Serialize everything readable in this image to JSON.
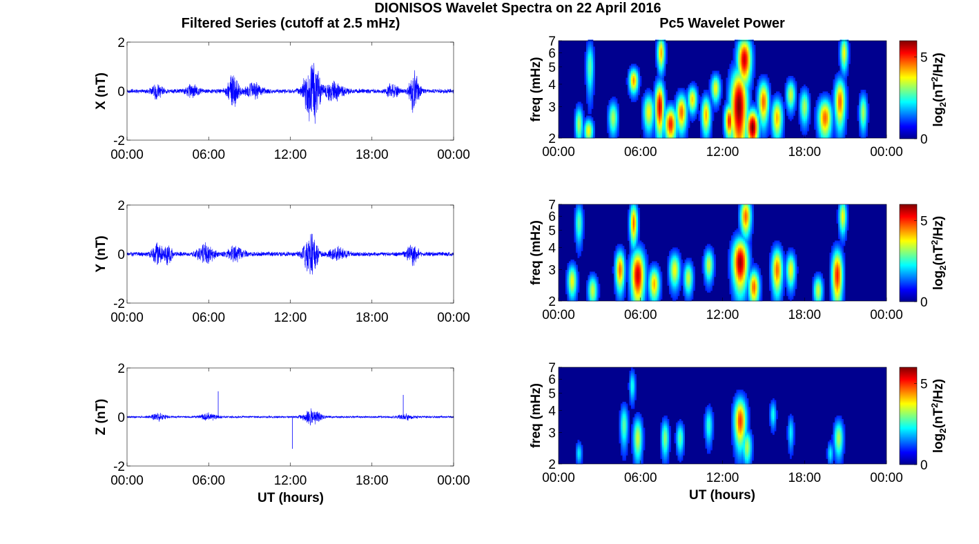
{
  "figure": {
    "title": "DIONISOS Wavelet Spectra on 22 April 2016",
    "left_title": "Filtered Series (cutoff at 2.5 mHz)",
    "right_title": "Pc5 Wavelet Power",
    "time_label": "UT (hours)",
    "freq_label": "freq (mHz)",
    "colorbar_label": "log2(nT2/Hz)"
  },
  "colors": {
    "series_line": "#0000ff",
    "heat_background": "#00008f",
    "colormap": "jet"
  },
  "chart_data": [
    {
      "type": "line",
      "panel": "X",
      "ylabel": "X (nT)",
      "xticks": [
        "00:00",
        "06:00",
        "12:00",
        "18:00",
        "00:00"
      ],
      "xlim_hours": [
        0,
        24
      ],
      "ylim": [
        -2,
        2
      ],
      "yticks": [
        "2",
        "0",
        "-2"
      ],
      "baseline_amplitude": 0.1,
      "events": [
        {
          "t_hours": 2.2,
          "amp": 0.3,
          "width": 0.4
        },
        {
          "t_hours": 4.8,
          "amp": 0.25,
          "width": 0.5
        },
        {
          "t_hours": 7.8,
          "amp": 0.8,
          "width": 0.4
        },
        {
          "t_hours": 9.3,
          "amp": 0.35,
          "width": 0.6
        },
        {
          "t_hours": 13.6,
          "amp": 1.65,
          "width": 0.55
        },
        {
          "t_hours": 15.2,
          "amp": 0.4,
          "width": 0.7
        },
        {
          "t_hours": 19.5,
          "amp": 0.35,
          "width": 0.4
        },
        {
          "t_hours": 21.1,
          "amp": 1.0,
          "width": 0.35
        }
      ],
      "spikes": []
    },
    {
      "type": "line",
      "panel": "Y",
      "ylabel": "Y (nT)",
      "xticks": [
        "00:00",
        "06:00",
        "12:00",
        "18:00",
        "00:00"
      ],
      "xlim_hours": [
        0,
        24
      ],
      "ylim": [
        -2,
        2
      ],
      "yticks": [
        "2",
        "0",
        "-2"
      ],
      "baseline_amplitude": 0.1,
      "events": [
        {
          "t_hours": 2.2,
          "amp": 0.6,
          "width": 0.35
        },
        {
          "t_hours": 3.0,
          "amp": 0.4,
          "width": 0.3
        },
        {
          "t_hours": 5.8,
          "amp": 0.45,
          "width": 0.6
        },
        {
          "t_hours": 8.0,
          "amp": 0.3,
          "width": 0.6
        },
        {
          "t_hours": 13.5,
          "amp": 1.0,
          "width": 0.5
        },
        {
          "t_hours": 15.5,
          "amp": 0.3,
          "width": 0.6
        },
        {
          "t_hours": 21.0,
          "amp": 0.45,
          "width": 0.4
        }
      ],
      "spikes": []
    },
    {
      "type": "line",
      "panel": "Z",
      "ylabel": "Z (nT)",
      "xticks": [
        "00:00",
        "06:00",
        "12:00",
        "18:00",
        "00:00"
      ],
      "xlim_hours": [
        0,
        24
      ],
      "ylim": [
        -2,
        2
      ],
      "yticks": [
        "2",
        "0",
        "-2"
      ],
      "baseline_amplitude": 0.05,
      "events": [
        {
          "t_hours": 2.3,
          "amp": 0.15,
          "width": 0.5
        },
        {
          "t_hours": 6.0,
          "amp": 0.15,
          "width": 0.6
        },
        {
          "t_hours": 13.6,
          "amp": 0.35,
          "width": 0.6
        },
        {
          "t_hours": 20.5,
          "amp": 0.12,
          "width": 0.5
        }
      ],
      "spikes": [
        {
          "t_hours": 6.7,
          "value": 1.05
        },
        {
          "t_hours": 12.15,
          "value": -1.3
        },
        {
          "t_hours": 20.3,
          "value": 0.9
        }
      ]
    },
    {
      "type": "heatmap",
      "panel": "X",
      "ylabel": "freq (mHz)",
      "xticks": [
        "00:00",
        "06:00",
        "12:00",
        "18:00",
        "00:00"
      ],
      "xlim_hours": [
        0,
        24
      ],
      "ylim_mhz": [
        2,
        7
      ],
      "yscale": "log",
      "yticks": [
        "2",
        "3",
        "4",
        "5",
        "6",
        "7"
      ],
      "clim": [
        0,
        6
      ],
      "colorbar_ticks": [
        "0",
        "5"
      ],
      "colorbar_label": "log2(nT2/Hz)",
      "blobs": [
        {
          "t": 1.5,
          "f": 2.4,
          "p": 3.0,
          "tw": 0.25,
          "fw": 0.5
        },
        {
          "t": 2.2,
          "f": 2.2,
          "p": 3.5,
          "tw": 0.3,
          "fw": 0.3
        },
        {
          "t": 2.3,
          "f": 5.0,
          "p": 2.5,
          "tw": 0.25,
          "fw": 1.5
        },
        {
          "t": 4.0,
          "f": 2.6,
          "p": 3.0,
          "tw": 0.3,
          "fw": 0.5
        },
        {
          "t": 5.5,
          "f": 4.2,
          "p": 4.2,
          "tw": 0.3,
          "fw": 0.6
        },
        {
          "t": 6.6,
          "f": 2.8,
          "p": 3.5,
          "tw": 0.35,
          "fw": 0.6
        },
        {
          "t": 7.4,
          "f": 3.0,
          "p": 5.5,
          "tw": 0.3,
          "fw": 0.9
        },
        {
          "t": 7.5,
          "f": 6.0,
          "p": 4.0,
          "tw": 0.25,
          "fw": 1.2
        },
        {
          "t": 8.2,
          "f": 2.4,
          "p": 5.0,
          "tw": 0.4,
          "fw": 0.5
        },
        {
          "t": 9.0,
          "f": 2.8,
          "p": 4.5,
          "tw": 0.35,
          "fw": 0.6
        },
        {
          "t": 9.8,
          "f": 3.3,
          "p": 3.8,
          "tw": 0.3,
          "fw": 0.5
        },
        {
          "t": 10.8,
          "f": 2.7,
          "p": 4.0,
          "tw": 0.3,
          "fw": 0.6
        },
        {
          "t": 11.5,
          "f": 3.8,
          "p": 3.5,
          "tw": 0.3,
          "fw": 0.6
        },
        {
          "t": 12.5,
          "f": 2.5,
          "p": 5.0,
          "tw": 0.3,
          "fw": 0.5
        },
        {
          "t": 13.2,
          "f": 3.0,
          "p": 6.0,
          "tw": 0.55,
          "fw": 1.5
        },
        {
          "t": 13.6,
          "f": 5.5,
          "p": 5.5,
          "tw": 0.45,
          "fw": 1.5
        },
        {
          "t": 14.2,
          "f": 2.3,
          "p": 6.0,
          "tw": 0.4,
          "fw": 0.5
        },
        {
          "t": 15.0,
          "f": 3.2,
          "p": 4.5,
          "tw": 0.35,
          "fw": 0.8
        },
        {
          "t": 16.0,
          "f": 2.6,
          "p": 4.0,
          "tw": 0.35,
          "fw": 0.6
        },
        {
          "t": 17.0,
          "f": 3.5,
          "p": 3.2,
          "tw": 0.3,
          "fw": 0.6
        },
        {
          "t": 18.0,
          "f": 3.0,
          "p": 3.0,
          "tw": 0.3,
          "fw": 0.6
        },
        {
          "t": 19.5,
          "f": 2.6,
          "p": 4.5,
          "tw": 0.45,
          "fw": 0.6
        },
        {
          "t": 20.6,
          "f": 3.2,
          "p": 4.5,
          "tw": 0.35,
          "fw": 0.9
        },
        {
          "t": 20.9,
          "f": 6.0,
          "p": 3.5,
          "tw": 0.25,
          "fw": 1.2
        },
        {
          "t": 22.3,
          "f": 2.8,
          "p": 3.0,
          "tw": 0.25,
          "fw": 0.6
        }
      ]
    },
    {
      "type": "heatmap",
      "panel": "Y",
      "ylabel": "freq (mHz)",
      "xticks": [
        "00:00",
        "06:00",
        "12:00",
        "18:00",
        "00:00"
      ],
      "xlim_hours": [
        0,
        24
      ],
      "ylim_mhz": [
        2,
        7
      ],
      "yscale": "log",
      "yticks": [
        "2",
        "3",
        "4",
        "5",
        "6",
        "7"
      ],
      "clim": [
        0,
        6
      ],
      "colorbar_ticks": [
        "0",
        "5"
      ],
      "colorbar_label": "log2(nT2/Hz)",
      "blobs": [
        {
          "t": 1.0,
          "f": 2.6,
          "p": 3.5,
          "tw": 0.3,
          "fw": 0.5
        },
        {
          "t": 1.5,
          "f": 5.5,
          "p": 2.5,
          "tw": 0.25,
          "fw": 1.3
        },
        {
          "t": 2.5,
          "f": 2.3,
          "p": 3.2,
          "tw": 0.3,
          "fw": 0.4
        },
        {
          "t": 4.5,
          "f": 3.0,
          "p": 4.5,
          "tw": 0.3,
          "fw": 0.7
        },
        {
          "t": 5.8,
          "f": 2.8,
          "p": 5.5,
          "tw": 0.45,
          "fw": 0.9
        },
        {
          "t": 5.5,
          "f": 5.5,
          "p": 4.5,
          "tw": 0.25,
          "fw": 1.3
        },
        {
          "t": 7.0,
          "f": 2.5,
          "p": 4.0,
          "tw": 0.35,
          "fw": 0.5
        },
        {
          "t": 8.5,
          "f": 3.0,
          "p": 3.5,
          "tw": 0.35,
          "fw": 0.6
        },
        {
          "t": 9.5,
          "f": 2.7,
          "p": 3.2,
          "tw": 0.3,
          "fw": 0.5
        },
        {
          "t": 11.0,
          "f": 3.2,
          "p": 3.2,
          "tw": 0.3,
          "fw": 0.6
        },
        {
          "t": 13.3,
          "f": 3.3,
          "p": 5.8,
          "tw": 0.5,
          "fw": 1.0
        },
        {
          "t": 13.7,
          "f": 6.0,
          "p": 4.5,
          "tw": 0.35,
          "fw": 1.3
        },
        {
          "t": 14.3,
          "f": 2.4,
          "p": 4.5,
          "tw": 0.35,
          "fw": 0.5
        },
        {
          "t": 16.0,
          "f": 3.0,
          "p": 4.5,
          "tw": 0.35,
          "fw": 0.8
        },
        {
          "t": 17.0,
          "f": 3.0,
          "p": 3.5,
          "tw": 0.3,
          "fw": 0.6
        },
        {
          "t": 20.4,
          "f": 2.8,
          "p": 5.0,
          "tw": 0.35,
          "fw": 0.9
        },
        {
          "t": 20.8,
          "f": 6.0,
          "p": 3.5,
          "tw": 0.25,
          "fw": 1.2
        },
        {
          "t": 19.0,
          "f": 2.3,
          "p": 3.2,
          "tw": 0.3,
          "fw": 0.4
        }
      ]
    },
    {
      "type": "heatmap",
      "panel": "Z",
      "ylabel": "freq (mHz)",
      "xticks": [
        "00:00",
        "06:00",
        "12:00",
        "18:00",
        "00:00"
      ],
      "xlim_hours": [
        0,
        24
      ],
      "ylim_mhz": [
        2,
        7
      ],
      "yscale": "log",
      "yticks": [
        "2",
        "3",
        "4",
        "5",
        "6",
        "7"
      ],
      "clim": [
        0,
        6
      ],
      "colorbar_ticks": [
        "0",
        "5"
      ],
      "colorbar_label": "log2(nT2/Hz)",
      "blobs": [
        {
          "t": 1.5,
          "f": 2.3,
          "p": 1.8,
          "tw": 0.2,
          "fw": 0.3
        },
        {
          "t": 4.8,
          "f": 3.3,
          "p": 2.5,
          "tw": 0.25,
          "fw": 0.8
        },
        {
          "t": 5.8,
          "f": 2.8,
          "p": 3.2,
          "tw": 0.3,
          "fw": 0.7
        },
        {
          "t": 5.4,
          "f": 5.5,
          "p": 2.0,
          "tw": 0.2,
          "fw": 1.0
        },
        {
          "t": 7.8,
          "f": 2.8,
          "p": 2.8,
          "tw": 0.25,
          "fw": 0.6
        },
        {
          "t": 8.9,
          "f": 2.8,
          "p": 2.5,
          "tw": 0.25,
          "fw": 0.5
        },
        {
          "t": 11.0,
          "f": 3.3,
          "p": 2.2,
          "tw": 0.25,
          "fw": 0.7
        },
        {
          "t": 13.3,
          "f": 3.5,
          "p": 4.8,
          "tw": 0.4,
          "fw": 1.0
        },
        {
          "t": 13.8,
          "f": 2.5,
          "p": 3.0,
          "tw": 0.3,
          "fw": 0.5
        },
        {
          "t": 15.7,
          "f": 3.8,
          "p": 2.0,
          "tw": 0.2,
          "fw": 0.6
        },
        {
          "t": 17.0,
          "f": 3.0,
          "p": 1.8,
          "tw": 0.2,
          "fw": 0.6
        },
        {
          "t": 20.5,
          "f": 2.8,
          "p": 3.0,
          "tw": 0.3,
          "fw": 0.6
        },
        {
          "t": 19.9,
          "f": 2.3,
          "p": 1.8,
          "tw": 0.2,
          "fw": 0.3
        }
      ]
    }
  ]
}
